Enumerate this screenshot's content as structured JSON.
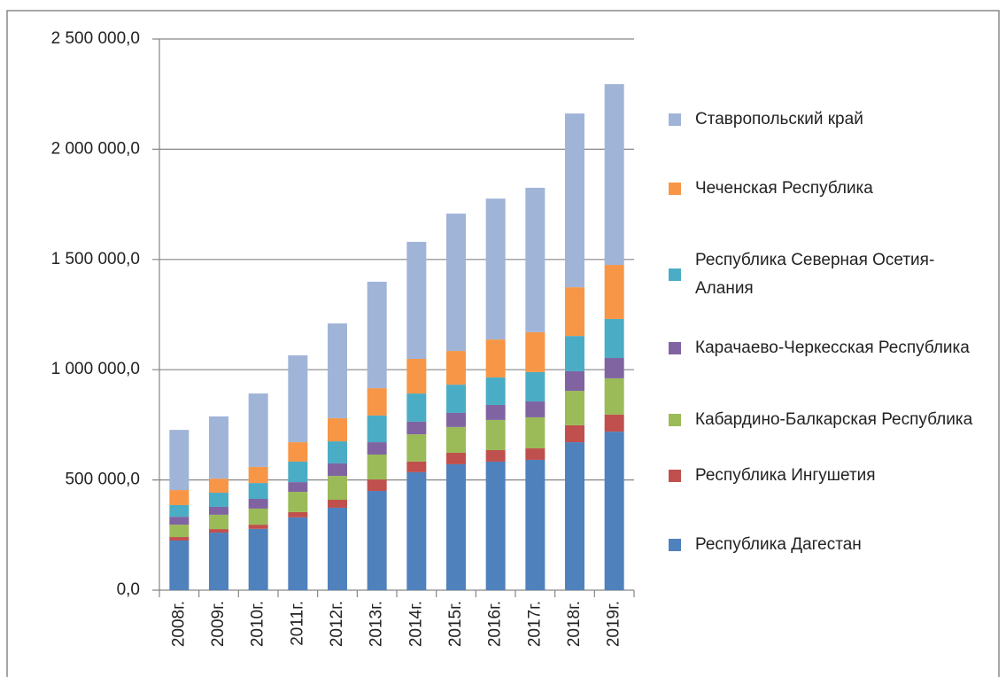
{
  "chart_data": {
    "type": "stacked_bar",
    "categories": [
      "2008г.",
      "2009г.",
      "2010г.",
      "2011г.",
      "2012г.",
      "2013г.",
      "2014г.",
      "2015г.",
      "2016г.",
      "2017г.",
      "2018г.",
      "2019г."
    ],
    "series": [
      {
        "name": "Республика Дагестан",
        "color": "#4f81bd",
        "values": [
          225000,
          261000,
          278000,
          330000,
          374000,
          450000,
          535000,
          571000,
          583000,
          591000,
          671000,
          719000
        ]
      },
      {
        "name": "Республика Ингушетия",
        "color": "#c0504d",
        "values": [
          16000,
          16000,
          19000,
          24000,
          36000,
          52000,
          48000,
          52000,
          52000,
          52000,
          77000,
          77000
        ]
      },
      {
        "name": "Кабардино-Балкарская Республика",
        "color": "#9bbb59",
        "values": [
          56000,
          65000,
          73000,
          92000,
          108000,
          113000,
          124000,
          117000,
          137000,
          141000,
          156000,
          165000
        ]
      },
      {
        "name": "Карачаево-Черкесская Республика",
        "color": "#8064a2",
        "values": [
          36000,
          36000,
          44000,
          44000,
          57000,
          56000,
          57000,
          64000,
          68000,
          72000,
          89000,
          92000
        ]
      },
      {
        "name": "Республика Северная Осетия-Алания",
        "color": "#4bacc6",
        "values": [
          53000,
          64000,
          72000,
          93000,
          100000,
          121000,
          128000,
          128000,
          125000,
          133000,
          160000,
          177000
        ]
      },
      {
        "name": "Чеченская Республика",
        "color": "#f79646",
        "values": [
          68000,
          64000,
          73000,
          88000,
          105000,
          124000,
          157000,
          153000,
          172000,
          181000,
          221000,
          245000
        ]
      },
      {
        "name": "Ставропольский край",
        "color": "#a0b4d8",
        "values": [
          273000,
          282000,
          333000,
          394000,
          430000,
          483000,
          531000,
          623000,
          639000,
          655000,
          788000,
          820000
        ]
      }
    ],
    "ylim": [
      0,
      2500000
    ],
    "yticks": [
      {
        "value": 0,
        "label": "0,0"
      },
      {
        "value": 500000,
        "label": "500 000,0"
      },
      {
        "value": 1000000,
        "label": "1 000 000,0"
      },
      {
        "value": 1500000,
        "label": "1 500 000,0"
      },
      {
        "value": 2000000,
        "label": "2 000 000,0"
      },
      {
        "value": 2500000,
        "label": "2 500 000,0"
      }
    ],
    "grid": true
  }
}
